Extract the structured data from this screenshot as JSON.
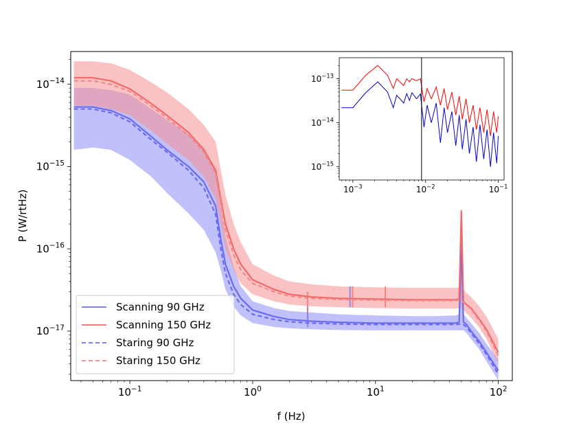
{
  "chart_data": [
    {
      "type": "line",
      "xscale": "log",
      "yscale": "log",
      "xlim": [
        0.033,
        130
      ],
      "ylim": [
        2.5e-18,
        2.5e-14
      ],
      "xlabel": "f (Hz)",
      "ylabel": "P (W/rtHz)",
      "x_ticks": [
        {
          "value": 0.1,
          "base": "10",
          "exp": "−1"
        },
        {
          "value": 1,
          "base": "10",
          "exp": "0"
        },
        {
          "value": 10,
          "base": "10",
          "exp": "1"
        },
        {
          "value": 100,
          "base": "10",
          "exp": "2"
        }
      ],
      "y_ticks": [
        {
          "value": 1e-17,
          "base": "10",
          "exp": "−17"
        },
        {
          "value": 1e-16,
          "base": "10",
          "exp": "−16"
        },
        {
          "value": 1e-15,
          "base": "10",
          "exp": "−15"
        },
        {
          "value": 1e-14,
          "base": "10",
          "exp": "−14"
        }
      ],
      "legend_position": "lower-left",
      "x": [
        0.035,
        0.05,
        0.07,
        0.1,
        0.15,
        0.2,
        0.3,
        0.4,
        0.5,
        0.55,
        0.6,
        0.7,
        0.8,
        1.0,
        1.5,
        2,
        3,
        5,
        10,
        20,
        30,
        45,
        48,
        50,
        52,
        55,
        60,
        70,
        80,
        100
      ],
      "series": [
        {
          "name": "Scanning 90 GHz",
          "color": "#6a6af2",
          "style": "solid",
          "values": [
            5.3e-15,
            5.3e-15,
            4.8e-15,
            3.8e-15,
            2.3e-15,
            1.6e-15,
            1e-15,
            6.5e-16,
            3.3e-16,
            1.3e-16,
            6.5e-17,
            3.5e-17,
            2.5e-17,
            1.8e-17,
            1.5e-17,
            1.38e-17,
            1.32e-17,
            1.28e-17,
            1.25e-17,
            1.25e-17,
            1.25e-17,
            1.25e-17,
            1.28e-17,
            1.3e-16,
            1.3e-17,
            1.2e-17,
            1e-17,
            7.5e-18,
            5.5e-18,
            3.3e-18
          ],
          "band_low": [
            1.6e-15,
            1.7e-15,
            1.6e-15,
            1.2e-15,
            7.5e-16,
            4.8e-16,
            2.7e-16,
            1.7e-16,
            9e-17,
            5.5e-17,
            3.2e-17,
            2e-17,
            1.55e-17,
            1.25e-17,
            1.12e-17,
            1.08e-17,
            1.05e-17,
            1.03e-17,
            1.02e-17,
            1.02e-17,
            1.02e-17,
            1.02e-17,
            1.02e-17,
            1.02e-17,
            1.02e-17,
            9.5e-18,
            8e-18,
            6e-18,
            4.3e-18,
            2.5e-18
          ],
          "band_high": [
            9e-15,
            9e-15,
            8.5e-15,
            7.5e-15,
            5e-15,
            3.7e-15,
            2.5e-15,
            1.7e-15,
            9e-16,
            3.2e-16,
            1.4e-16,
            6e-17,
            3.5e-17,
            2.3e-17,
            1.9e-17,
            1.75e-17,
            1.68e-17,
            1.6e-17,
            1.55e-17,
            1.52e-17,
            1.52e-17,
            1.55e-17,
            1.6e-17,
            2.5e-16,
            1.6e-17,
            1.45e-17,
            1.25e-17,
            9.5e-18,
            7e-18,
            4.5e-18
          ]
        },
        {
          "name": "Scanning 150 GHz",
          "color": "#f06a6a",
          "style": "solid",
          "values": [
            1.2e-14,
            1.2e-14,
            1.1e-14,
            8.8e-15,
            5.8e-15,
            4.2e-15,
            2.6e-15,
            1.6e-15,
            9e-16,
            4e-16,
            2e-16,
            1e-16,
            6.5e-17,
            4.2e-17,
            3.2e-17,
            2.8e-17,
            2.6e-17,
            2.5e-17,
            2.45e-17,
            2.4e-17,
            2.4e-17,
            2.4e-17,
            2.45e-17,
            2.9e-16,
            2.3e-17,
            2.1e-17,
            1.9e-17,
            1.4e-17,
            1.05e-17,
            5.5e-18
          ],
          "band_low": [
            5.5e-15,
            5.5e-15,
            5e-15,
            4.2e-15,
            2.7e-15,
            1.9e-15,
            1.2e-15,
            7.5e-16,
            4e-16,
            1.9e-16,
            1e-16,
            5.5e-17,
            3.8e-17,
            2.8e-17,
            2.3e-17,
            2.1e-17,
            2e-17,
            1.95e-17,
            1.9e-17,
            1.88e-17,
            1.88e-17,
            1.88e-17,
            1.9e-17,
            1.9e-17,
            1.8e-17,
            1.65e-17,
            1.45e-17,
            1.1e-17,
            8e-18,
            4e-18
          ],
          "band_high": [
            1.9e-14,
            1.9e-14,
            1.8e-14,
            1.5e-14,
            1.05e-14,
            8e-15,
            5e-15,
            3.2e-15,
            2e-15,
            9e-16,
            4.5e-16,
            2e-16,
            1.2e-16,
            6.5e-17,
            4.7e-17,
            4e-17,
            3.7e-17,
            3.5e-17,
            3.4e-17,
            3.35e-17,
            3.35e-17,
            3.35e-17,
            3.4e-17,
            3e-16,
            3.2e-17,
            2.9e-17,
            2.6e-17,
            2e-17,
            1.5e-17,
            8e-18
          ]
        },
        {
          "name": "Staring 90 GHz",
          "color": "#6a6af2",
          "style": "dashed",
          "values": [
            5e-15,
            5e-15,
            4.5e-15,
            3.5e-15,
            2.1e-15,
            1.5e-15,
            9e-16,
            5.5e-16,
            2.6e-16,
            1e-16,
            5e-17,
            2.8e-17,
            2.1e-17,
            1.6e-17,
            1.38e-17,
            1.3e-17,
            1.25e-17,
            1.22e-17,
            1.2e-17,
            1.2e-17,
            1.2e-17,
            1.2e-17,
            1.22e-17,
            1.2e-17,
            1.2e-17,
            1.12e-17,
            9.5e-18,
            7e-18,
            5.2e-18,
            3e-18
          ]
        },
        {
          "name": "Staring 150 GHz",
          "color": "#f08a8a",
          "style": "dashed",
          "values": [
            1.1e-14,
            1.1e-14,
            1e-14,
            8.2e-15,
            5.4e-15,
            3.9e-15,
            2.4e-15,
            1.5e-15,
            8.2e-16,
            3.5e-16,
            1.7e-16,
            8.5e-17,
            5.5e-17,
            3.8e-17,
            3e-17,
            2.65e-17,
            2.5e-17,
            2.42e-17,
            2.38e-17,
            2.35e-17,
            2.35e-17,
            2.35e-17,
            2.38e-17,
            2.3e-17,
            2.25e-17,
            2.05e-17,
            1.85e-17,
            1.35e-17,
            1e-17,
            5e-18
          ]
        }
      ],
      "spikes": [
        {
          "series": "Scanning 90 GHz",
          "x": 2.8,
          "value": 2e-17
        },
        {
          "series": "Scanning 150 GHz",
          "x": 2.8,
          "value": 3e-17
        },
        {
          "series": "Scanning 90 GHz",
          "x": 6.2,
          "value": 3.5e-17
        },
        {
          "series": "Scanning 150 GHz",
          "x": 6.5,
          "value": 3.5e-17
        },
        {
          "series": "Scanning 150 GHz",
          "x": 12,
          "value": 3.5e-17
        }
      ]
    },
    {
      "type": "line",
      "inset": true,
      "xscale": "log",
      "yscale": "log",
      "xlim": [
        0.00065,
        0.12
      ],
      "ylim": [
        5e-16,
        3e-13
      ],
      "x_ticks": [
        {
          "value": 0.001,
          "base": "10",
          "exp": "−3"
        },
        {
          "value": 0.01,
          "base": "10",
          "exp": "−2"
        },
        {
          "value": 0.1,
          "base": "10",
          "exp": "−1"
        }
      ],
      "y_ticks": [
        {
          "value": 1e-15,
          "base": "10",
          "exp": "−15"
        },
        {
          "value": 1e-14,
          "base": "10",
          "exp": "−14"
        },
        {
          "value": 1e-13,
          "base": "10",
          "exp": "−13"
        }
      ],
      "vertical_line_x": 0.0088,
      "x": [
        0.0007,
        0.001,
        0.0015,
        0.0022,
        0.003,
        0.0036,
        0.004,
        0.005,
        0.0055,
        0.006,
        0.0065,
        0.0075,
        0.0085,
        0.0095,
        0.0105,
        0.012,
        0.014,
        0.016,
        0.018,
        0.02,
        0.023,
        0.026,
        0.029,
        0.032,
        0.036,
        0.04,
        0.045,
        0.05,
        0.056,
        0.063,
        0.07,
        0.078,
        0.086,
        0.095,
        0.1
      ],
      "series": [
        {
          "color": "#ff0000",
          "values": [
            5.5e-14,
            5.5e-14,
            1.2e-13,
            2e-13,
            1.2e-13,
            6e-14,
            1e-13,
            7e-14,
            1e-13,
            8.5e-14,
            1e-13,
            9e-14,
            1e-13,
            3e-14,
            6e-14,
            3.5e-14,
            6.5e-14,
            2.5e-14,
            6e-14,
            2e-14,
            5e-14,
            1.5e-14,
            4e-14,
            1.2e-14,
            3.5e-14,
            1e-14,
            2.5e-14,
            7e-15,
            2.2e-14,
            6e-15,
            2e-14,
            5e-15,
            1.8e-14,
            6e-15,
            1.4e-14
          ]
        },
        {
          "color": "#0000cc",
          "values": [
            2.2e-14,
            2.2e-14,
            4.8e-14,
            8.5e-14,
            5e-14,
            2.2e-14,
            4.2e-14,
            2.8e-14,
            4.6e-14,
            3.2e-14,
            4.8e-14,
            3.5e-14,
            4.5e-14,
            8e-15,
            2.5e-14,
            1e-14,
            2.8e-14,
            3.5e-15,
            2.2e-14,
            6e-15,
            1.8e-14,
            3e-15,
            1.5e-14,
            2.5e-15,
            1.2e-14,
            2e-15,
            8e-15,
            1.3e-15,
            9e-15,
            1.5e-15,
            7e-15,
            1e-15,
            6e-15,
            1.2e-15,
            5e-15
          ]
        }
      ]
    }
  ]
}
